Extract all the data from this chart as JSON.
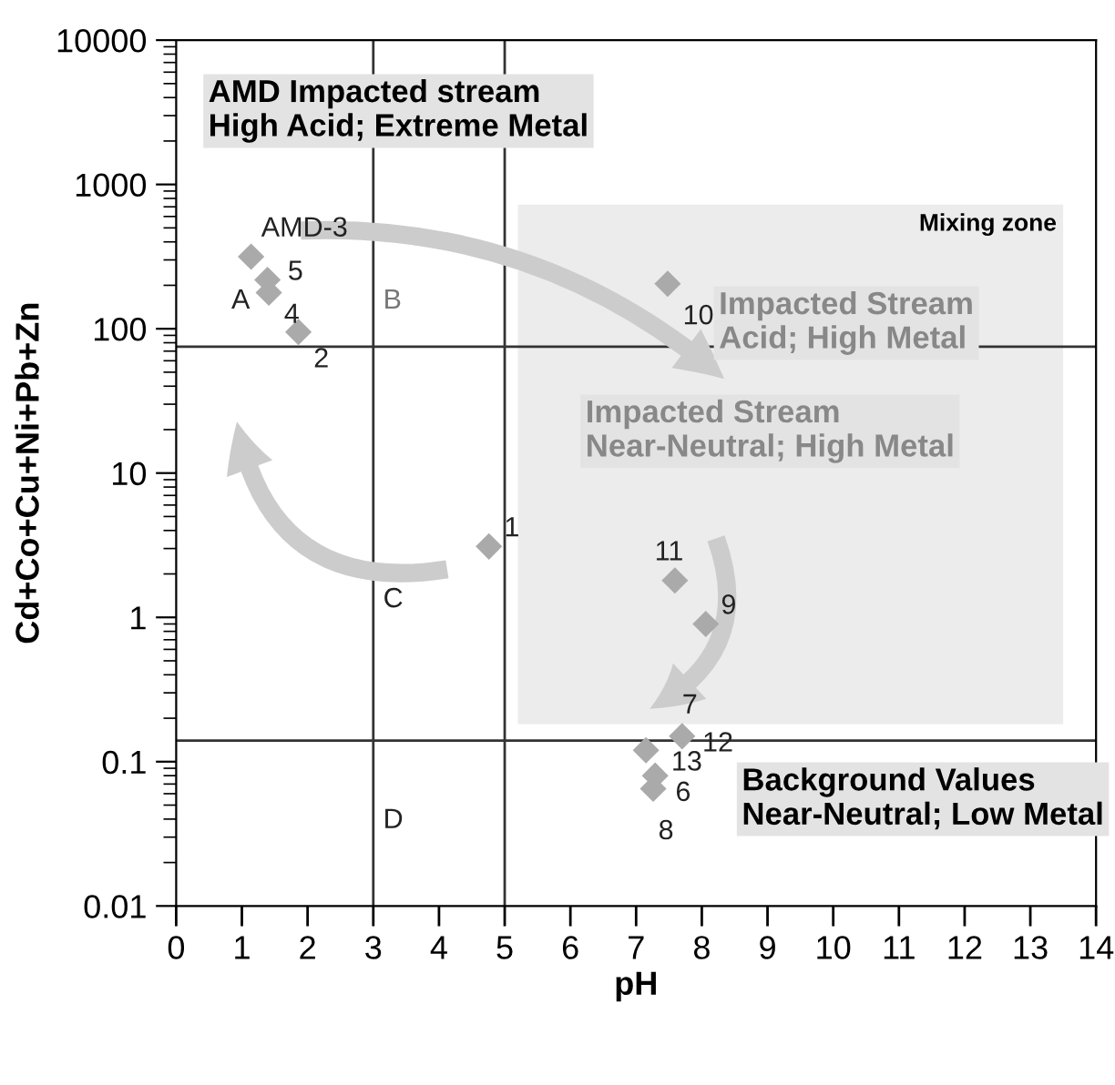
{
  "chart_data": {
    "type": "scatter",
    "xlabel": "pH",
    "ylabel": "Cd+Co+Cu+Ni+Pb+Zn",
    "x": [
      1.14,
      1.39,
      1.41,
      1.86,
      4.76,
      7.48,
      7.59,
      8.06,
      7.7,
      7.15,
      7.29,
      7.26
    ],
    "series": [
      {
        "color": "#aaaaaa",
        "values": [
          316,
          218,
          178,
          95,
          3.1,
          205,
          1.8,
          0.9,
          0.15,
          0.12,
          0.08,
          0.065
        ]
      }
    ],
    "marker": "diamond",
    "log": "y",
    "grid": false,
    "xlim": [
      0,
      14
    ],
    "xticks": [
      0,
      1,
      2,
      3,
      4,
      5,
      6,
      7,
      8,
      9,
      10,
      11,
      12,
      13,
      14
    ],
    "ylim": [
      0.01,
      10000
    ],
    "yticks": [
      0.01,
      0.1,
      1,
      10,
      100,
      1000,
      10000
    ],
    "ref_lines": [
      {
        "axis": "x",
        "value": 3,
        "color": "#333333"
      },
      {
        "axis": "x",
        "value": 5,
        "color": "#333333"
      },
      {
        "axis": "y",
        "value": 75,
        "color": "#333333"
      },
      {
        "axis": "y",
        "value": 0.14,
        "color": "#333333"
      }
    ],
    "bands": [
      {
        "axis": "x",
        "from": 5.2,
        "to": 13.5,
        "label": "Mixing zone",
        "color": "#ececec"
      }
    ],
    "annotations": [
      "AMD Impacted stream\nHigh Acid; Extreme Metal",
      "Impacted Stream\nAcid; High Metal",
      "Impacted Stream\nNear-Neutral; High Metal",
      "Background Values\nNear-Neutral; Low Metal",
      "A",
      "B",
      "C",
      "D",
      {
        "text": "AMD-3",
        "x": 1.14,
        "y": 316
      },
      {
        "text": "5",
        "x": 1.39,
        "y": 218
      },
      {
        "text": "4",
        "x": 1.41,
        "y": 178
      },
      {
        "text": "2",
        "x": 1.86,
        "y": 95
      },
      {
        "text": "1",
        "x": 4.76,
        "y": 3.1
      },
      {
        "text": "10",
        "x": 7.48,
        "y": 205
      },
      {
        "text": "11",
        "x": 7.59,
        "y": 1.8
      },
      {
        "text": "9",
        "x": 8.06,
        "y": 0.9
      },
      {
        "text": "7",
        "x": 7.7,
        "y": 0.15
      },
      {
        "text": "13",
        "x": 7.15,
        "y": 0.12
      },
      {
        "text": "6",
        "x": 7.29,
        "y": 0.08
      },
      {
        "text": "8",
        "x": 7.26,
        "y": 0.065
      },
      {
        "text": "12",
        "x": 7.7,
        "y": 0.15
      }
    ]
  }
}
